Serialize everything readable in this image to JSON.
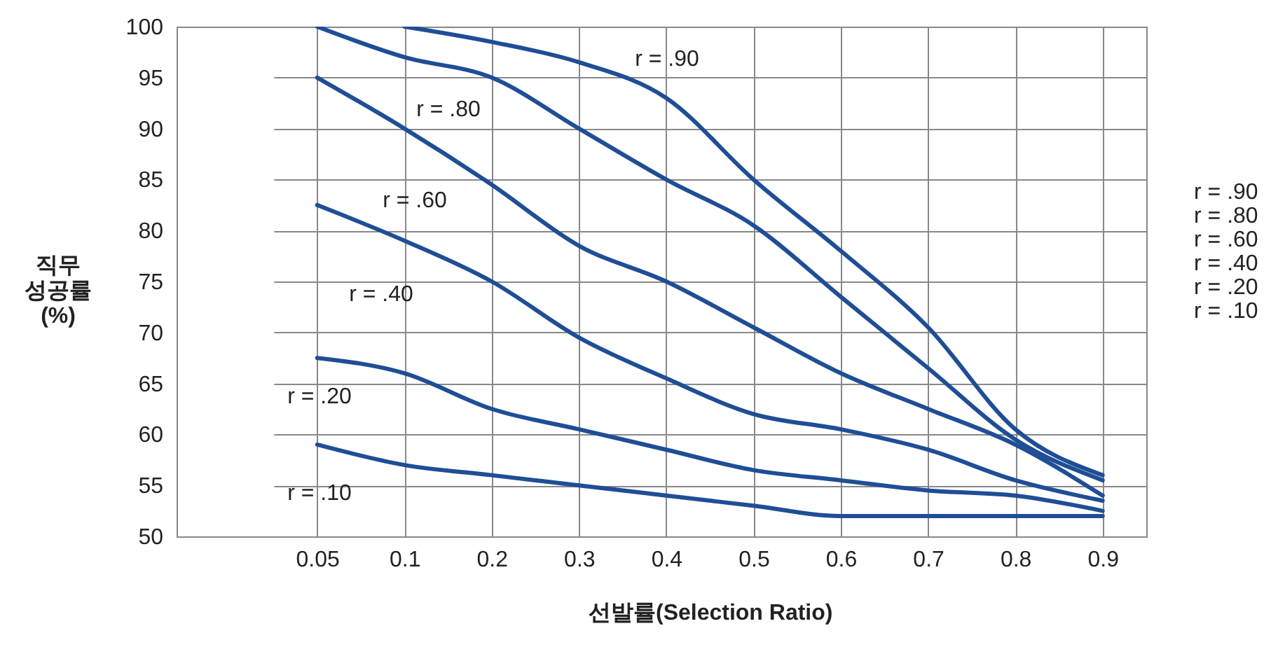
{
  "chart_data": {
    "type": "line",
    "xlabel": "선발률(Selection Ratio)",
    "ylabel": "직무 성공률 (%)",
    "categories": [
      "0.05",
      "0.1",
      "0.2",
      "0.3",
      "0.4",
      "0.5",
      "0.6",
      "0.7",
      "0.8",
      "0.9"
    ],
    "series": [
      {
        "name": "r = .90",
        "color": "#1f4e96",
        "values": [
          null,
          100,
          98.5,
          96.5,
          93,
          85,
          78,
          70.5,
          60.5,
          56
        ]
      },
      {
        "name": "r = .80",
        "color": "#1f4e96",
        "values": [
          100,
          97,
          95,
          90,
          85,
          80.5,
          73.5,
          66.5,
          59.5,
          55.5
        ]
      },
      {
        "name": "r = .60",
        "color": "#1f4e96",
        "values": [
          95,
          90,
          84.5,
          78.5,
          75,
          70.5,
          66,
          62.5,
          59,
          54
        ]
      },
      {
        "name": "r = .40",
        "color": "#1f4e96",
        "values": [
          82.5,
          79,
          75,
          69.5,
          65.5,
          62,
          60.5,
          58.5,
          55.5,
          53.5
        ]
      },
      {
        "name": "r = .20",
        "color": "#1f4e96",
        "values": [
          67.5,
          66,
          62.5,
          60.5,
          58.5,
          56.5,
          55.5,
          54.5,
          54,
          52.5
        ]
      },
      {
        "name": "r = .10",
        "color": "#1f4e96",
        "values": [
          59,
          57,
          56,
          55,
          54,
          53,
          52,
          52,
          52,
          52
        ]
      }
    ],
    "annotations": [
      "r = .90",
      "r = .80",
      "r = .60",
      "r = .40",
      "r = .20",
      "r = .10"
    ],
    "ylim": [
      50,
      100
    ],
    "yticks": [
      50,
      55,
      60,
      65,
      70,
      75,
      80,
      85,
      90,
      95,
      100
    ],
    "grid": true,
    "legend": "right"
  }
}
